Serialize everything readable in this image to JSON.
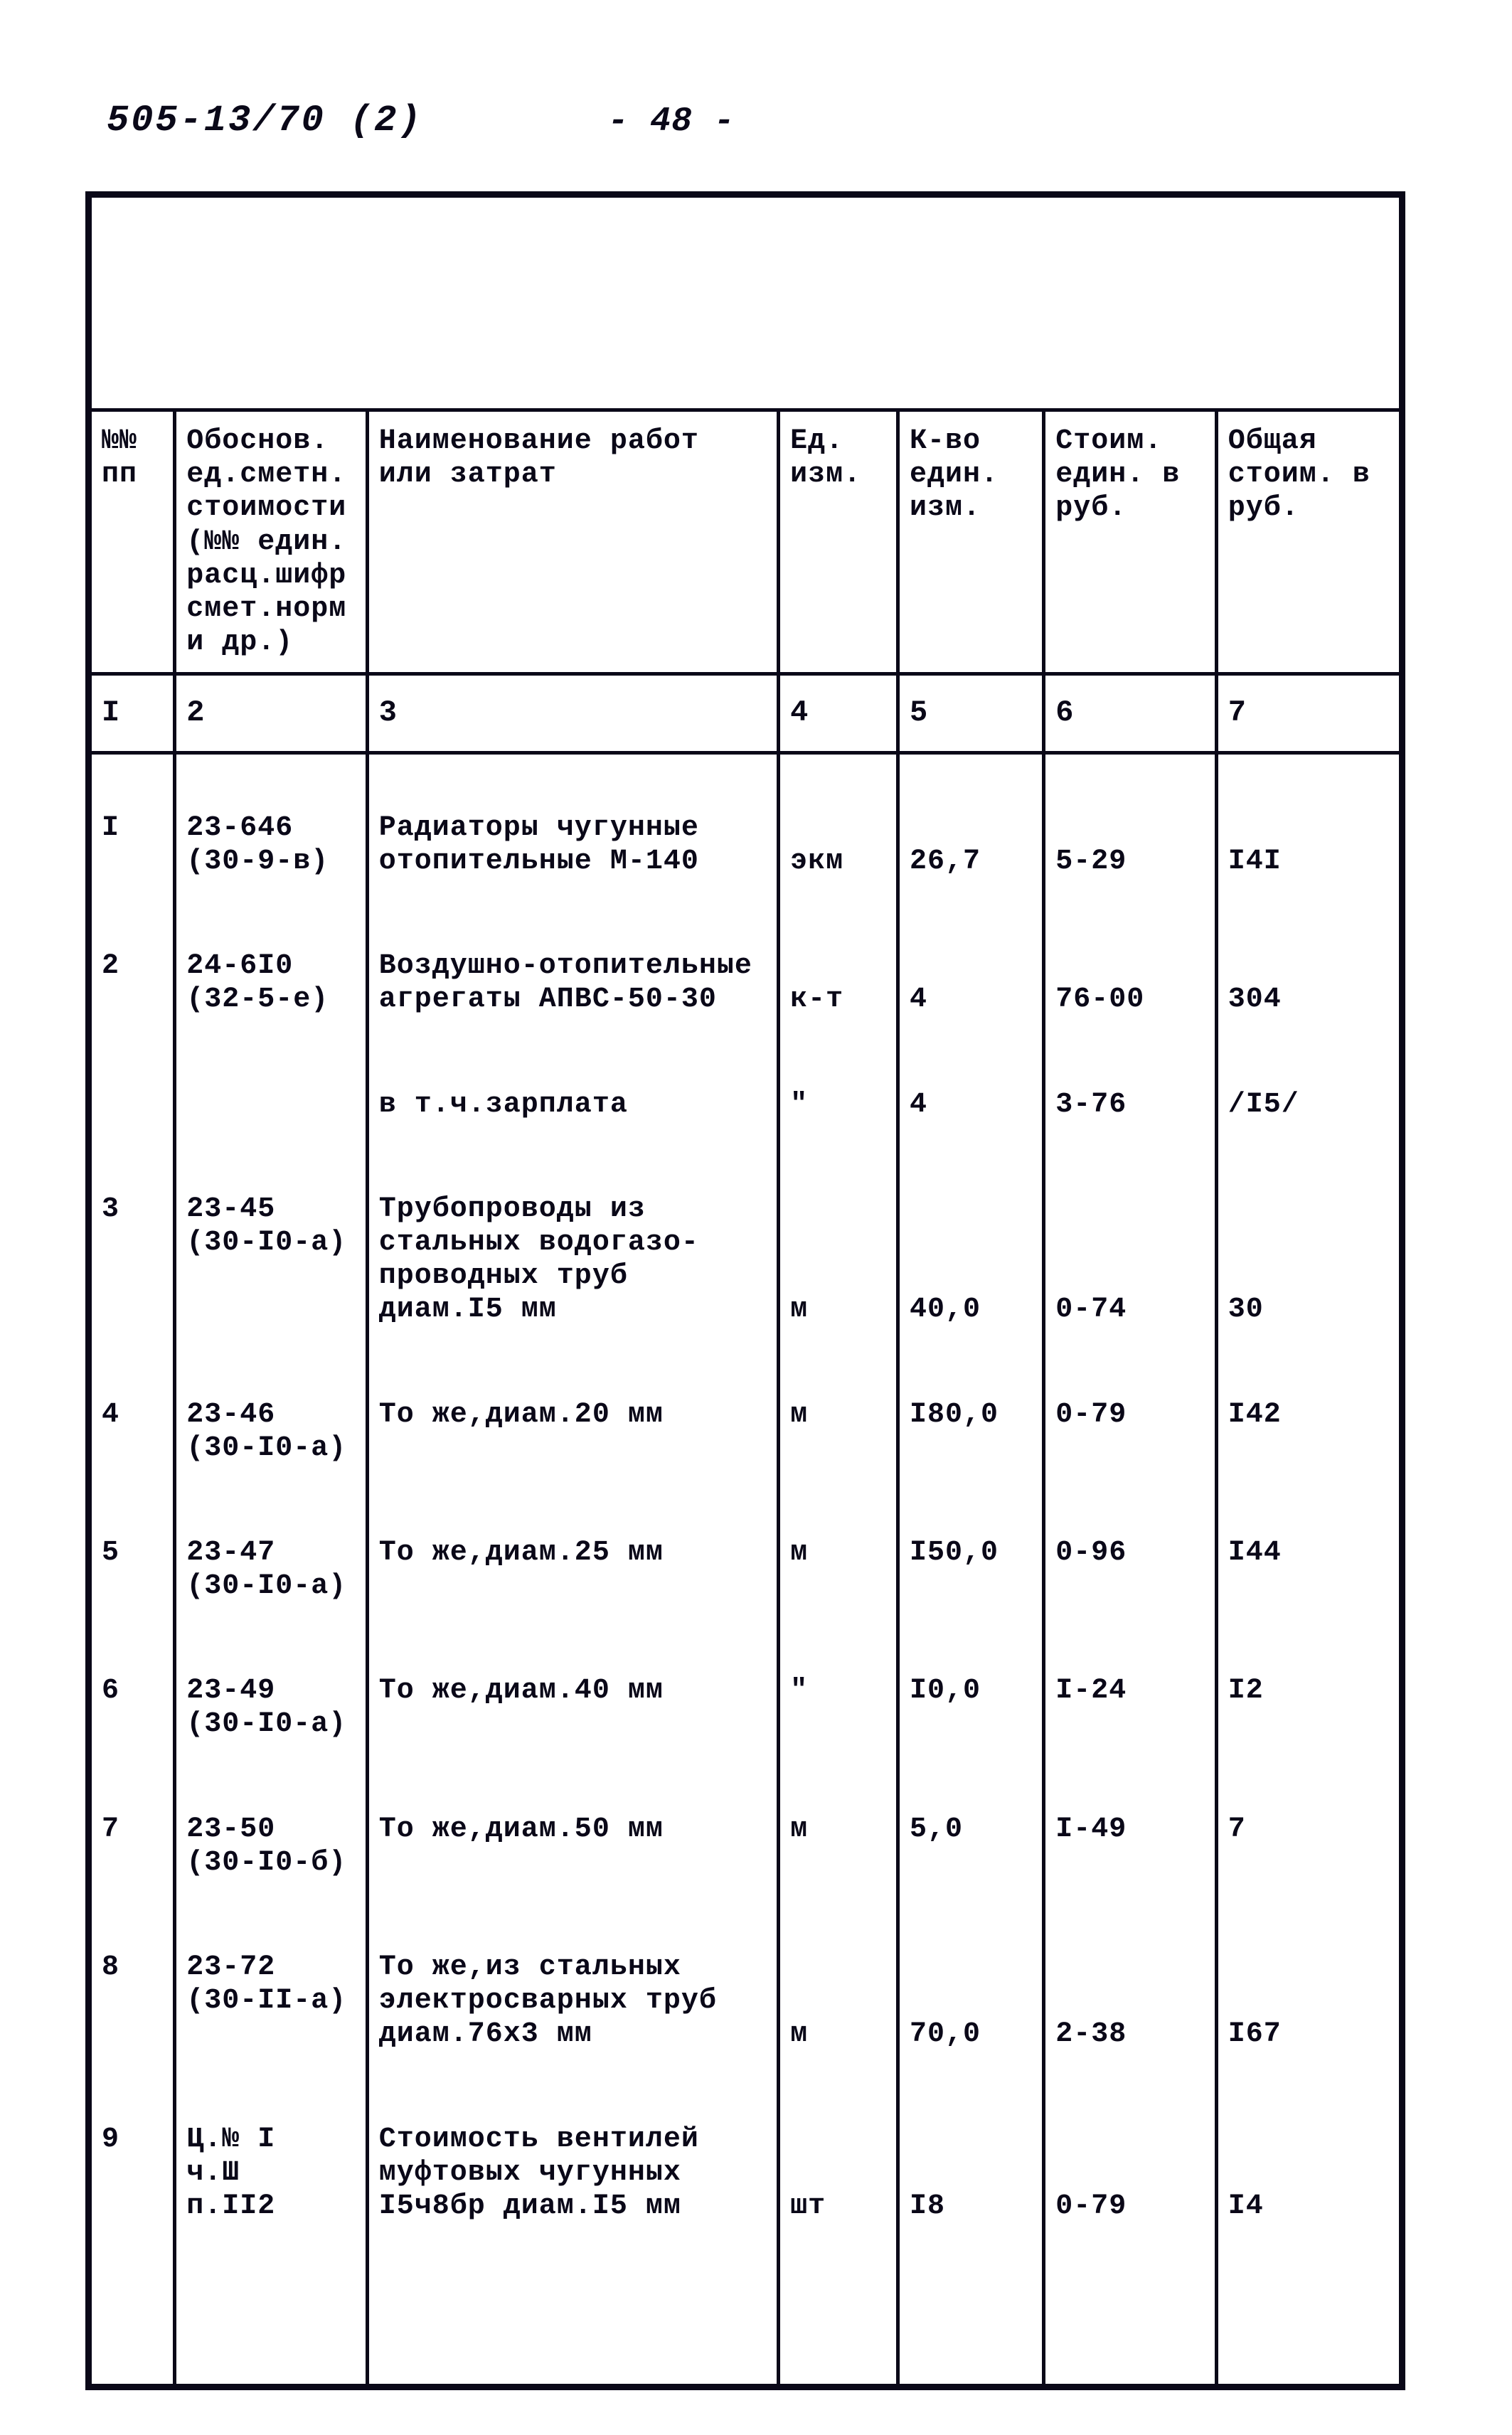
{
  "doc_ref": "505-13/70 (2)",
  "page_label": "- 48 -",
  "border_color": "#0a0818",
  "text_color": "#0a0818",
  "background_color": "#ffffff",
  "font_family": "Courier New",
  "base_font_size_pt": 30,
  "headers": {
    "c1": "№№\nпп",
    "c2": "Обоснов. ед.сметн. стоимости (№№ един. расц.шифр смет.норм и др.)",
    "c3": "Наименование работ или затрат",
    "c4": "Ед. изм.",
    "c5": "К-во един. изм.",
    "c6": "Стоим. един. в руб.",
    "c7": "Общая стоим. в руб."
  },
  "colnums": {
    "c1": "I",
    "c2": "2",
    "c3": "3",
    "c4": "4",
    "c5": "5",
    "c6": "6",
    "c7": "7"
  },
  "rows": [
    {
      "n": "I",
      "code": "23-646\n(30-9-в)",
      "desc": "Радиаторы чугунные отопительные М-140",
      "unit": "экм",
      "qty": "26,7",
      "price": "5-29",
      "total": "I4I"
    },
    {
      "n": "2",
      "code": "24-6I0\n(32-5-е)",
      "desc": "Воздушно-отопитель­ные агрегаты АПВС-50-30",
      "unit": "к-т",
      "qty": "4",
      "price": "76-00",
      "total": "304"
    },
    {
      "n": "",
      "code": "",
      "desc": "в т.ч.зарплата",
      "unit": "\"",
      "qty": "4",
      "price": "3-76",
      "total": "/I5/"
    },
    {
      "n": "3",
      "code": "23-45\n(30-I0-а)",
      "desc": "Трубопроводы из стальных водогазо­проводных труб диам.I5 мм",
      "unit": "м",
      "qty": "40,0",
      "price": "0-74",
      "total": "30"
    },
    {
      "n": "4",
      "code": "23-46\n(30-I0-а)",
      "desc": "То же,диам.20 мм",
      "unit": "м",
      "qty": "I80,0",
      "price": "0-79",
      "total": "I42"
    },
    {
      "n": "5",
      "code": "23-47\n(30-I0-а)",
      "desc": "То же,диам.25 мм",
      "unit": "м",
      "qty": "I50,0",
      "price": "0-96",
      "total": "I44"
    },
    {
      "n": "6",
      "code": "23-49\n(30-I0-а)",
      "desc": "То же,диам.40 мм",
      "unit": "\"",
      "qty": "I0,0",
      "price": "I-24",
      "total": "I2"
    },
    {
      "n": "7",
      "code": "23-50\n(30-I0-б)",
      "desc": "То же,диам.50 мм",
      "unit": "м",
      "qty": "5,0",
      "price": "I-49",
      "total": "7"
    },
    {
      "n": "8",
      "code": "23-72\n(30-II-а)",
      "desc": "То же,из стальных электросварных труб диам.76х3 мм",
      "unit": "м",
      "qty": "70,0",
      "price": "2-38",
      "total": "I67"
    },
    {
      "n": "9",
      "code": "Ц.№ I\nч.Ш\nп.II2",
      "desc": "Стоимость вентилей муфтовых чугунных I5ч8бр диам.I5 мм",
      "unit": "шт",
      "qty": "I8",
      "price": "0-79",
      "total": "I4"
    }
  ],
  "columns": {
    "widths_pct": [
      6.5,
      14.5,
      31,
      9,
      11,
      13,
      14
    ],
    "align": [
      "left",
      "left",
      "left",
      "left",
      "left",
      "left",
      "left"
    ]
  }
}
